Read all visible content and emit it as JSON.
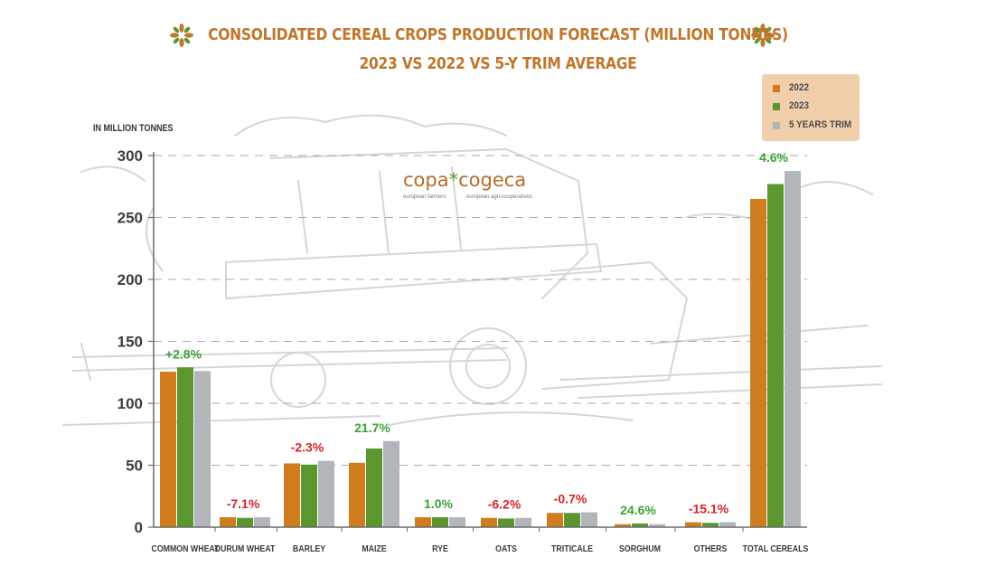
{
  "header": {
    "title_line1": "CONSOLIDATED CEREAL CROPS PRODUCTION FORECAST (MILLION TONNES)",
    "title_line2": "2023 VS 2022 VS 5-Y TRIM AVERAGE"
  },
  "logo": {
    "copa": "copa",
    "cogeca": "cogeca",
    "copa_sub": "european farmers",
    "cogeca_sub": "european agri-cooperatives"
  },
  "colors": {
    "c2022": "#d07d1f",
    "c2023": "#5b972e",
    "c5y": "#b2b5ba",
    "title": "#c0762b",
    "legend_bg": "#f2cfab",
    "positive": "#3aa336",
    "negative": "#d9222a",
    "decor": "#ccd1d4"
  },
  "chart_data": {
    "type": "bar",
    "ylabel": "IN MILLION TONNES",
    "ylim": [
      0,
      300
    ],
    "yticks": [
      0,
      50,
      100,
      150,
      200,
      250,
      300
    ],
    "grid": "dashed horizontal",
    "legend_position": "top-right",
    "categories": [
      "COMMON WHEAT",
      "DURUM WHEAT",
      "BARLEY",
      "MAIZE",
      "RYE",
      "OATS",
      "TRITICALE",
      "SORGHUM",
      "OTHERS",
      "TOTAL CEREALS"
    ],
    "series": [
      {
        "name": "2022",
        "color": "#d07d1f",
        "values": [
          125.5,
          8,
          51.5,
          52,
          8,
          7.5,
          11.5,
          2.4,
          4,
          265
        ]
      },
      {
        "name": "2023",
        "color": "#5b972e",
        "values": [
          129,
          7.5,
          50.5,
          63.5,
          8,
          7,
          11.5,
          3,
          3.5,
          277
        ]
      },
      {
        "name": "5 YEARS TRIM",
        "color": "#b2b5ba",
        "values": [
          126,
          8,
          53.5,
          69.5,
          8,
          7.5,
          12,
          2.4,
          4,
          287.5
        ]
      }
    ],
    "annotations": [
      "+2.8%",
      "-7.1%",
      "-2.3%",
      "21.7%",
      "1.0%",
      "-6.2%",
      "-0.7%",
      "24.6%",
      "-15.1%",
      "4.6%"
    ],
    "annotation_sign": [
      "positive",
      "negative",
      "negative",
      "positive",
      "positive",
      "negative",
      "negative",
      "positive",
      "negative",
      "positive"
    ]
  }
}
